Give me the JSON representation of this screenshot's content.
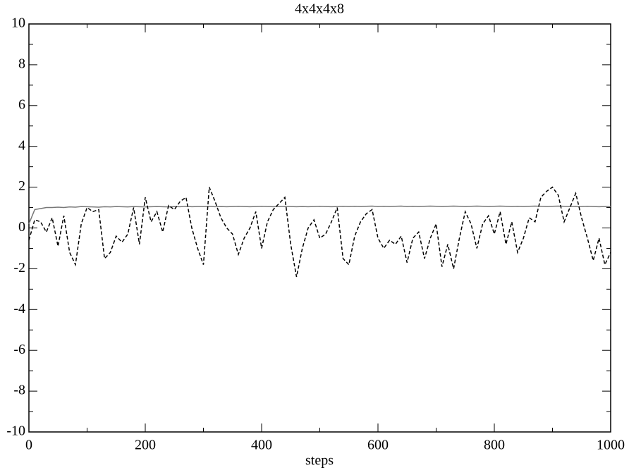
{
  "chart_data": {
    "type": "line",
    "title": "4x4x4x8",
    "x_label": "steps",
    "x": [
      0,
      10,
      20,
      30,
      40,
      50,
      60,
      70,
      80,
      90,
      100,
      110,
      120,
      130,
      140,
      150,
      160,
      170,
      180,
      190,
      200,
      210,
      220,
      230,
      240,
      250,
      260,
      270,
      280,
      290,
      300,
      310,
      320,
      330,
      340,
      350,
      360,
      370,
      380,
      390,
      400,
      410,
      420,
      430,
      440,
      450,
      460,
      470,
      480,
      490,
      500,
      510,
      520,
      530,
      540,
      550,
      560,
      570,
      580,
      590,
      600,
      610,
      620,
      630,
      640,
      650,
      660,
      670,
      680,
      690,
      700,
      710,
      720,
      730,
      740,
      750,
      760,
      770,
      780,
      790,
      800,
      810,
      820,
      830,
      840,
      850,
      860,
      870,
      880,
      890,
      900,
      910,
      920,
      930,
      940,
      950,
      960,
      970,
      980,
      990,
      1000
    ],
    "series": [
      {
        "color": "#777777",
        "style": "solid",
        "values": [
          0.2,
          0.9,
          0.95,
          1.0,
          1.0,
          1.02,
          1.0,
          1.03,
          1.02,
          1.05,
          1.04,
          1.03,
          1.02,
          1.04,
          1.03,
          1.05,
          1.04,
          1.03,
          1.05,
          1.04,
          1.03,
          1.04,
          1.05,
          1.04,
          1.03,
          1.05,
          1.04,
          1.06,
          1.04,
          1.05,
          1.05,
          1.06,
          1.04,
          1.05,
          1.04,
          1.05,
          1.06,
          1.05,
          1.04,
          1.05,
          1.06,
          1.05,
          1.04,
          1.05,
          1.06,
          1.05,
          1.04,
          1.05,
          1.04,
          1.05,
          1.06,
          1.05,
          1.04,
          1.05,
          1.06,
          1.05,
          1.06,
          1.05,
          1.06,
          1.07,
          1.05,
          1.06,
          1.05,
          1.06,
          1.07,
          1.05,
          1.06,
          1.05,
          1.06,
          1.07,
          1.06,
          1.05,
          1.06,
          1.07,
          1.06,
          1.05,
          1.06,
          1.07,
          1.06,
          1.05,
          1.06,
          1.07,
          1.06,
          1.05,
          1.06,
          1.05,
          1.06,
          1.07,
          1.06,
          1.05,
          1.06,
          1.07,
          1.06,
          1.05,
          1.06,
          1.05,
          1.06,
          1.05,
          1.04,
          1.05,
          1.05
        ]
      },
      {
        "color": "#000000",
        "style": "dashed",
        "values": [
          -0.6,
          0.4,
          0.3,
          -0.2,
          0.5,
          -0.9,
          0.6,
          -1.2,
          -1.8,
          0.2,
          1.0,
          0.8,
          0.9,
          -1.5,
          -1.2,
          -0.4,
          -0.7,
          -0.3,
          1.0,
          -0.8,
          1.5,
          0.3,
          0.8,
          -0.2,
          1.1,
          0.9,
          1.3,
          1.5,
          0.0,
          -1.0,
          -1.8,
          2.0,
          1.3,
          0.5,
          0.0,
          -0.3,
          -1.3,
          -0.5,
          0.0,
          0.8,
          -1.0,
          0.3,
          0.9,
          1.2,
          1.5,
          -0.8,
          -2.4,
          -1.0,
          0.0,
          0.4,
          -0.5,
          -0.3,
          0.3,
          1.0,
          -1.5,
          -1.8,
          -0.4,
          0.3,
          0.7,
          0.9,
          -0.5,
          -1.0,
          -0.6,
          -0.8,
          -0.4,
          -1.7,
          -0.5,
          -0.2,
          -1.5,
          -0.5,
          0.2,
          -1.9,
          -0.8,
          -2.0,
          -0.5,
          0.8,
          0.2,
          -1.0,
          0.2,
          0.6,
          -0.3,
          0.8,
          -0.8,
          0.3,
          -1.2,
          -0.5,
          0.5,
          0.3,
          1.5,
          1.8,
          2.0,
          1.6,
          0.3,
          1.0,
          1.7,
          0.5,
          -0.5,
          -1.6,
          -0.5,
          -1.8,
          -1.2
        ]
      }
    ],
    "xlim": [
      0,
      1000
    ],
    "xticks": [
      0,
      200,
      400,
      600,
      800,
      1000
    ],
    "ylim": [
      -10,
      10
    ],
    "yticks": [
      -10,
      -8,
      -6,
      -4,
      -2,
      0,
      2,
      4,
      6,
      8,
      10
    ]
  }
}
